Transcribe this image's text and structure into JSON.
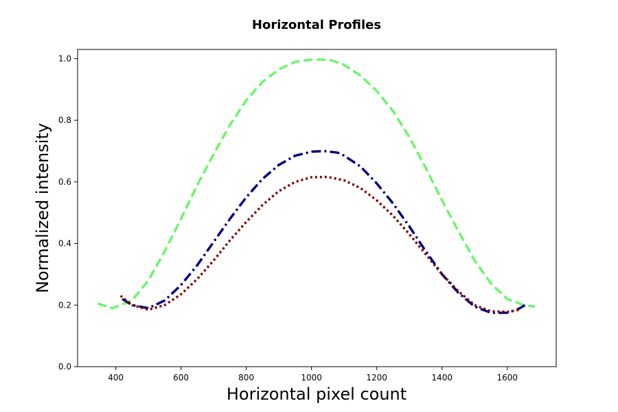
{
  "chart_data": {
    "type": "line",
    "title": "Horizontal Profiles",
    "xlabel": "Horizontal pixel count",
    "ylabel": "Normalized intensity",
    "xlim": [
      283,
      1750
    ],
    "ylim": [
      0.0,
      1.03
    ],
    "xticks": [
      400,
      600,
      800,
      1000,
      1200,
      1400,
      1600
    ],
    "yticks": [
      0.0,
      0.2,
      0.4,
      0.6,
      0.8,
      1.0
    ],
    "xtick_labels": [
      "400",
      "600",
      "800",
      "1000",
      "1200",
      "1400",
      "1600"
    ],
    "ytick_labels": [
      "0.0",
      "0.2",
      "0.4",
      "0.6",
      "0.8",
      "1.0"
    ],
    "grid": false,
    "legend": "none",
    "series": [
      {
        "color": "#6cf56c",
        "linestyle": "dashed",
        "x": [
          345,
          390,
          450,
          500,
          550,
          600,
          650,
          700,
          750,
          800,
          850,
          900,
          950,
          1000,
          1030,
          1060,
          1100,
          1150,
          1200,
          1250,
          1300,
          1350,
          1400,
          1450,
          1500,
          1550,
          1600,
          1650,
          1685
        ],
        "y": [
          0.205,
          0.19,
          0.215,
          0.28,
          0.375,
          0.48,
          0.59,
          0.69,
          0.785,
          0.865,
          0.925,
          0.965,
          0.99,
          0.997,
          0.997,
          0.995,
          0.98,
          0.945,
          0.895,
          0.83,
          0.745,
          0.645,
          0.54,
          0.44,
          0.345,
          0.27,
          0.22,
          0.2,
          0.195
        ]
      },
      {
        "color": "#000080",
        "linestyle": "dashdot",
        "x": [
          420,
          450,
          500,
          550,
          600,
          650,
          700,
          750,
          800,
          850,
          900,
          950,
          1000,
          1040,
          1080,
          1100,
          1150,
          1200,
          1250,
          1300,
          1350,
          1400,
          1450,
          1500,
          1550,
          1600,
          1630,
          1655
        ],
        "y": [
          0.22,
          0.2,
          0.19,
          0.215,
          0.265,
          0.33,
          0.405,
          0.48,
          0.55,
          0.61,
          0.655,
          0.685,
          0.698,
          0.7,
          0.695,
          0.685,
          0.65,
          0.595,
          0.53,
          0.455,
          0.375,
          0.3,
          0.24,
          0.195,
          0.175,
          0.175,
          0.185,
          0.2
        ]
      },
      {
        "color": "#7f0000",
        "linestyle": "dotted",
        "x": [
          415,
          450,
          500,
          550,
          600,
          650,
          700,
          750,
          800,
          850,
          900,
          950,
          1000,
          1050,
          1100,
          1150,
          1200,
          1250,
          1300,
          1350,
          1400,
          1450,
          1500,
          1550,
          1600,
          1640
        ],
        "y": [
          0.23,
          0.2,
          0.185,
          0.2,
          0.235,
          0.285,
          0.345,
          0.41,
          0.47,
          0.525,
          0.57,
          0.6,
          0.615,
          0.616,
          0.605,
          0.58,
          0.54,
          0.49,
          0.43,
          0.365,
          0.3,
          0.245,
          0.2,
          0.18,
          0.178,
          0.185
        ]
      }
    ]
  }
}
